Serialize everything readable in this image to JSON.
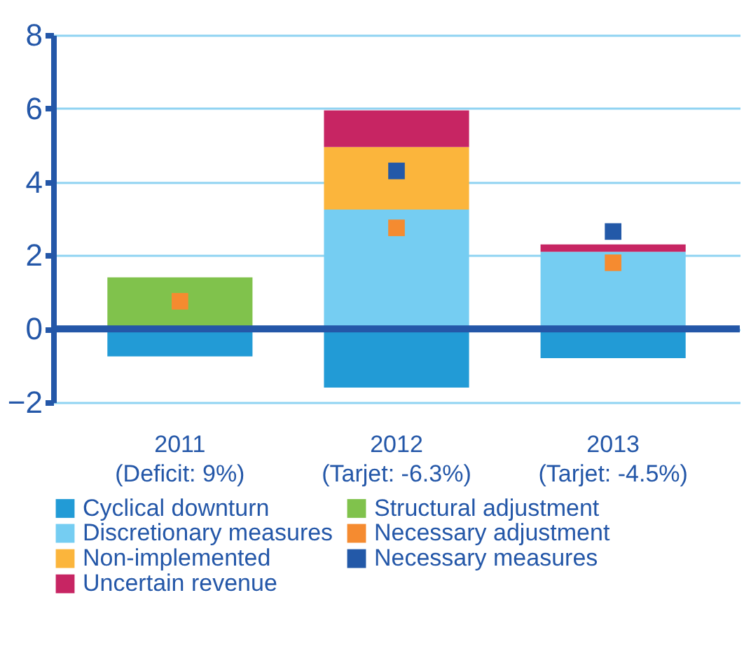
{
  "chart_data": {
    "type": "bar",
    "stacked": true,
    "categories": [
      "2011\n(Deficit: 9%)",
      "2012\n(Tarjet: -6.3%)",
      "2013\n(Tarjet: -4.5%)"
    ],
    "series": [
      {
        "name": "Cyclical downturn",
        "color": "#229bd6",
        "values": [
          -0.75,
          -1.6,
          -0.8
        ]
      },
      {
        "name": "Structural adjustment",
        "color": "#80c24c",
        "values": [
          1.4,
          null,
          null
        ]
      },
      {
        "name": "Discretionary measures",
        "color": "#75cdf2",
        "values": [
          null,
          3.25,
          2.1
        ]
      },
      {
        "name": "Necessary adjustment",
        "type": "scatter",
        "color": "#f58b30",
        "values": [
          0.75,
          2.75,
          1.8
        ]
      },
      {
        "name": "Non-implemented",
        "color": "#fbb53c",
        "values": [
          null,
          1.7,
          null
        ]
      },
      {
        "name": "Necessary measures",
        "type": "scatter",
        "color": "#2359a8",
        "values": [
          null,
          4.3,
          2.65
        ]
      },
      {
        "name": "Uncertain revenue",
        "color": "#c72563",
        "values": [
          null,
          1.0,
          0.2
        ]
      }
    ],
    "ref_lines": [
      {
        "axis": "y",
        "value": 0,
        "color": "#2457a8"
      }
    ],
    "marker": "square",
    "ylim": [
      -2,
      8
    ],
    "yticks": [
      -2,
      0,
      2,
      4,
      6,
      8
    ],
    "grid": "y",
    "legend": "bottom"
  }
}
